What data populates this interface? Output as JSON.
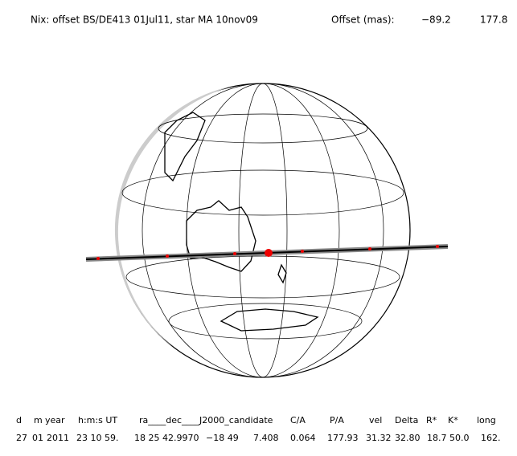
{
  "header": {
    "title": "Nix: offset BS/DE413 01Jul11, star MA 10nov09",
    "offset_label": "Offset (mas):",
    "offset_values": [
      "−89.2",
      "177.8"
    ]
  },
  "table": {
    "columns": [
      "d",
      "m",
      "year",
      "h:m:s UT",
      "ra____dec____J2000_candidate",
      "C/A",
      "P/A",
      "vel",
      "Delta",
      "R*",
      "K*",
      "long"
    ],
    "rows": [
      [
        "27",
        "01",
        "2011",
        "23 10 59.",
        "18 25 42.9970",
        "−18 49",
        "7.408",
        "0.064",
        "177.93",
        "31.32",
        "32.80",
        "18.7",
        "50.0",
        "162."
      ]
    ]
  }
}
